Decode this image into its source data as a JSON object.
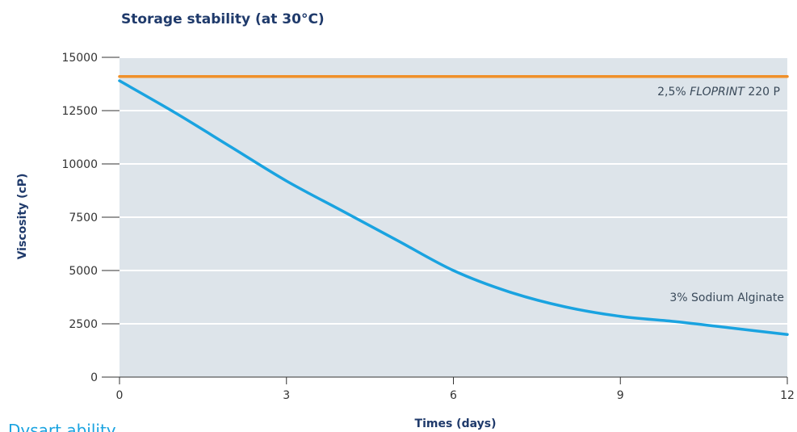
{
  "chart_data": {
    "type": "line",
    "title": "Storage stability (at 30°C)",
    "xlabel": "Times (days)",
    "ylabel": "Viscosity (cP)",
    "xlim": [
      0,
      12
    ],
    "ylim": [
      0,
      15000
    ],
    "xticks": [
      0,
      3,
      6,
      9,
      12
    ],
    "yticks": [
      0,
      2500,
      5000,
      7500,
      10000,
      12500,
      15000
    ],
    "grid": true,
    "background_color": "#dde4ea",
    "series": [
      {
        "name": "2,5% FLOPRINT 220 P",
        "label_prefix": "2,5% ",
        "label_italic": "FLOPRINT",
        "label_suffix": " 220 P",
        "color": "#f0902a",
        "x": [
          0,
          12
        ],
        "y": [
          14100,
          14100
        ]
      },
      {
        "name": "3% Sodium Alginate",
        "color": "#1aa3e0",
        "x": [
          0,
          1,
          2,
          3,
          4,
          5,
          6,
          7,
          8,
          9,
          10,
          11,
          12
        ],
        "y": [
          13900,
          12400,
          10800,
          9200,
          7800,
          6400,
          5000,
          4000,
          3300,
          2850,
          2600,
          2300,
          2000
        ]
      }
    ]
  },
  "footer_partial_text": "Dysart ability"
}
